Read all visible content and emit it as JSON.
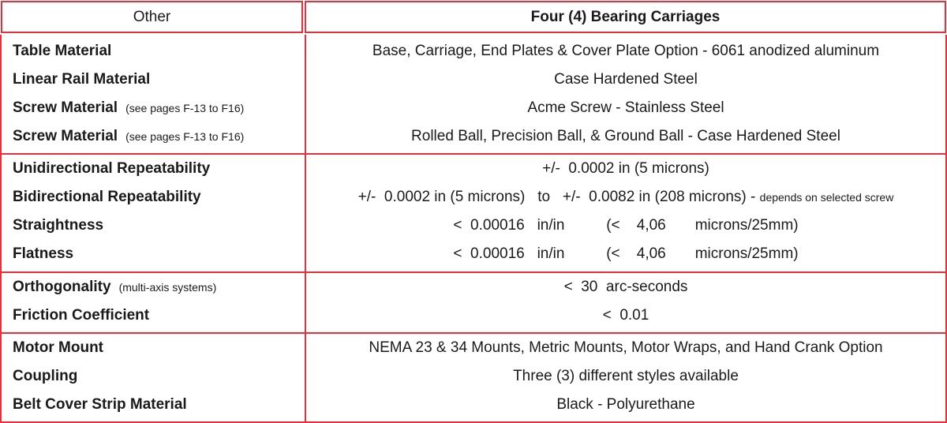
{
  "header": {
    "left": "Other",
    "right": "Four (4) Bearing Carriages"
  },
  "rows": [
    {
      "label": "Table Material",
      "note": "",
      "value": "Base, Carriage, End Plates & Cover Plate Option - 6061 anodized aluminum",
      "value_note": ""
    },
    {
      "label": "Linear Rail Material",
      "note": "",
      "value": "Case Hardened Steel",
      "value_note": ""
    },
    {
      "label": "Screw Material",
      "note": "(see pages F-13 to F16)",
      "value": "Acme Screw - Stainless Steel",
      "value_note": ""
    },
    {
      "label": "Screw Material",
      "note": "(see pages F-13 to F16)",
      "value": "Rolled Ball, Precision Ball, & Ground Ball - Case Hardened Steel",
      "value_note": ""
    },
    {
      "label": "Unidirectional Repeatability",
      "note": "",
      "value": "+/-  0.0002 in (5 microns)",
      "value_note": ""
    },
    {
      "label": "Bidirectional Repeatability",
      "note": "",
      "value": "+/-  0.0002 in (5 microns)   to   +/-  0.0082 in (208 microns) - ",
      "value_note": "depends on selected screw"
    },
    {
      "label": "Straightness",
      "note": "",
      "value": "<  0.00016   in/in          (<    4,06       microns/25mm)",
      "value_note": ""
    },
    {
      "label": "Flatness",
      "note": "",
      "value": "<  0.00016   in/in          (<    4,06       microns/25mm)",
      "value_note": ""
    },
    {
      "label": "Orthogonality",
      "note": "(multi-axis systems)",
      "value": "<  30  arc-seconds",
      "value_note": ""
    },
    {
      "label": "Friction Coefficient",
      "note": "",
      "value": "<  0.01",
      "value_note": ""
    },
    {
      "label": "Motor Mount",
      "note": "",
      "value": "NEMA 23 & 34 Mounts, Metric Mounts, Motor Wraps, and Hand Crank Option",
      "value_note": ""
    },
    {
      "label": "Coupling",
      "note": "",
      "value": "Three (3) different styles available",
      "value_note": ""
    },
    {
      "label": "Belt Cover Strip Material",
      "note": "",
      "value": "Black - Polyurethane",
      "value_note": ""
    }
  ],
  "colors": {
    "border": "#e8303a",
    "text": "#1a1a1a"
  }
}
